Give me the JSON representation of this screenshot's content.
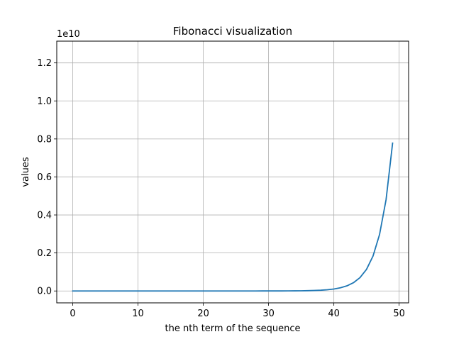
{
  "chart_data": {
    "type": "line",
    "title": "Fibonacci visualization",
    "xlabel": "the nth term of the sequence",
    "ylabel": "values",
    "y_offset_label": "1e10",
    "xlim": [
      -2.45,
      51.45
    ],
    "ylim": [
      -0.0626,
      1.3145
    ],
    "x_ticks": [
      0,
      10,
      20,
      30,
      40,
      50
    ],
    "x_tick_labels": [
      "0",
      "10",
      "20",
      "30",
      "40",
      "50"
    ],
    "y_ticks": [
      0.0,
      0.2,
      0.4,
      0.6,
      0.8,
      1.0,
      1.2
    ],
    "y_tick_labels": [
      "0.0",
      "0.2",
      "0.4",
      "0.6",
      "0.8",
      "1.0",
      "1.2"
    ],
    "grid": true,
    "line_color": "#1f77b4",
    "series": [
      {
        "x": [
          0,
          1,
          2,
          3,
          4,
          5,
          6,
          7,
          8,
          9,
          10,
          11,
          12,
          13,
          14,
          15,
          16,
          17,
          18,
          19,
          20,
          21,
          22,
          23,
          24,
          25,
          26,
          27,
          28,
          29,
          30,
          31,
          32,
          33,
          34,
          35,
          36,
          37,
          38,
          39,
          40,
          41,
          42,
          43,
          44,
          45,
          46,
          47,
          48,
          49
        ],
        "values": [
          0,
          1,
          1,
          2,
          3,
          5,
          8,
          13,
          21,
          34,
          55,
          89,
          144,
          233,
          377,
          610,
          987,
          1597,
          2584,
          4181,
          6765,
          10946,
          17711,
          28657,
          46368,
          75025,
          121393,
          196418,
          317811,
          514229,
          832040,
          1346269,
          2178309,
          3524578,
          5702887,
          9227465,
          14930352,
          24157817,
          39088169,
          63245986,
          102334155,
          165580141,
          267914296,
          433494437,
          701408733,
          1134903170,
          1836311903,
          2971215073,
          4807526976,
          7778742049
        ]
      }
    ]
  }
}
